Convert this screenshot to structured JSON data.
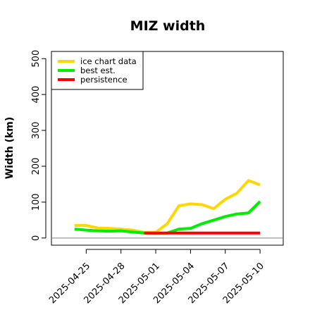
{
  "chart_data": {
    "type": "line",
    "title": "MIZ width",
    "xlabel": "",
    "ylabel": "Width (km)",
    "ylim": [
      -20,
      520
    ],
    "y_ticks": [
      0,
      100,
      200,
      300,
      400,
      500
    ],
    "x_ticks": [
      "2025-04-25",
      "2025-04-28",
      "2025-05-01",
      "2025-05-04",
      "2025-05-07",
      "2025-05-10"
    ],
    "x_range": [
      "2025-04-22",
      "2025-05-12"
    ],
    "grid": false,
    "legend_position": "top-left",
    "reference_line": 0,
    "series": [
      {
        "name": "ice chart data",
        "color": "#FFD700",
        "points": [
          [
            "2025-04-24",
            35
          ],
          [
            "2025-04-25",
            35
          ],
          [
            "2025-04-26",
            28
          ],
          [
            "2025-04-27",
            27
          ],
          [
            "2025-04-28",
            25
          ],
          [
            "2025-04-29",
            22
          ],
          [
            "2025-04-30",
            16
          ],
          [
            "2025-05-01",
            16
          ],
          [
            "2025-05-02",
            40
          ],
          [
            "2025-05-03",
            90
          ],
          [
            "2025-05-04",
            95
          ],
          [
            "2025-05-05",
            93
          ],
          [
            "2025-05-06",
            82
          ],
          [
            "2025-05-07",
            108
          ],
          [
            "2025-05-08",
            125
          ],
          [
            "2025-05-09",
            160
          ],
          [
            "2025-05-10",
            148
          ]
        ]
      },
      {
        "name": "best est.",
        "color": "#00EE00",
        "points": [
          [
            "2025-04-24",
            25
          ],
          [
            "2025-04-25",
            22
          ],
          [
            "2025-04-26",
            20
          ],
          [
            "2025-04-27",
            19
          ],
          [
            "2025-04-28",
            20
          ],
          [
            "2025-04-29",
            17
          ],
          [
            "2025-04-30",
            14
          ],
          [
            "2025-05-01",
            13
          ],
          [
            "2025-05-02",
            14
          ],
          [
            "2025-05-03",
            25
          ],
          [
            "2025-05-04",
            27
          ],
          [
            "2025-05-05",
            40
          ],
          [
            "2025-05-06",
            50
          ],
          [
            "2025-05-07",
            60
          ],
          [
            "2025-05-08",
            67
          ],
          [
            "2025-05-09",
            70
          ],
          [
            "2025-05-10",
            102
          ]
        ]
      },
      {
        "name": "persistence",
        "color": "#FF0000",
        "points": [
          [
            "2025-04-30",
            14
          ],
          [
            "2025-05-10",
            14
          ]
        ]
      }
    ]
  }
}
